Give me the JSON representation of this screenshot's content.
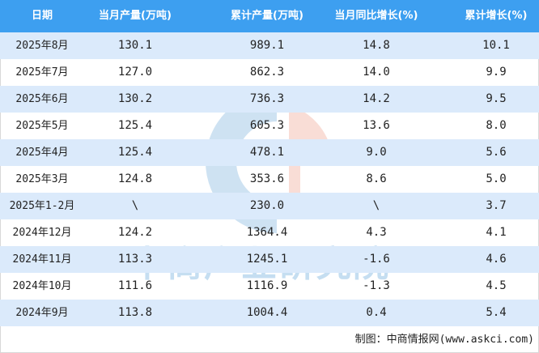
{
  "table": {
    "columns": [
      "日期",
      "当月产量(万吨)",
      "累计产量(万吨)",
      "当月同比增长(%)",
      "累计增长(%)"
    ],
    "rows": [
      [
        "2025年8月",
        "130.1",
        "989.1",
        "14.8",
        "10.1"
      ],
      [
        "2025年7月",
        "127.0",
        "862.3",
        "14.0",
        "9.9"
      ],
      [
        "2025年6月",
        "130.2",
        "736.3",
        "14.2",
        "9.5"
      ],
      [
        "2025年5月",
        "125.4",
        "605.3",
        "13.6",
        "8.0"
      ],
      [
        "2025年4月",
        "125.4",
        "478.1",
        "9.0",
        "5.6"
      ],
      [
        "2025年3月",
        "124.8",
        "353.6",
        "8.6",
        "5.0"
      ],
      [
        "2025年1-2月",
        "\\",
        "230.0",
        "\\",
        "3.7"
      ],
      [
        "2024年12月",
        "124.2",
        "1364.4",
        "4.3",
        "4.1"
      ],
      [
        "2024年11月",
        "113.3",
        "1245.1",
        "-1.6",
        "4.6"
      ],
      [
        "2024年10月",
        "111.6",
        "1116.9",
        "-1.3",
        "4.5"
      ],
      [
        "2024年9月",
        "113.8",
        "1004.4",
        "0.4",
        "5.4"
      ]
    ]
  },
  "footer": "制图：中商情报网(www.askci.com)",
  "watermark": "中商产业研究院",
  "colors": {
    "header": "#3d9ff0",
    "alt_row": "#dbeafb"
  }
}
